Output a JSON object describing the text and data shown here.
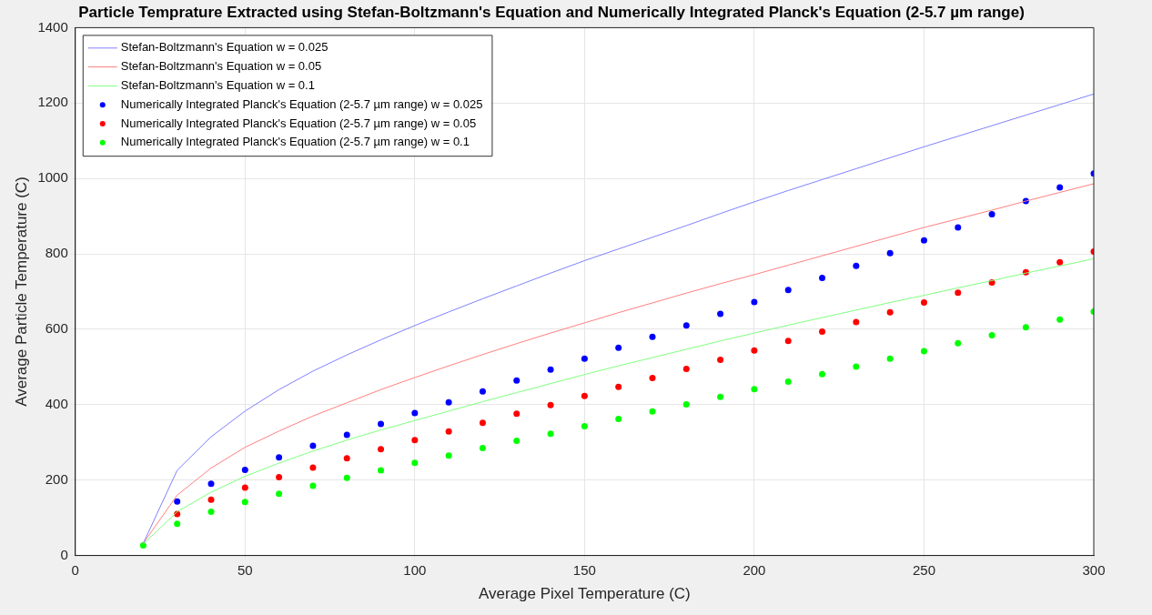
{
  "chart_data": {
    "type": "line",
    "title": "Particle Temprature Extracted using Stefan-Boltzmann's Equation and Numerically Integrated Planck's Equation (2-5.7 µm range)",
    "xlabel": "Average Pixel Temperature (C)",
    "ylabel": "Average Particle Temperature (C)",
    "x": [
      20,
      30,
      40,
      50,
      60,
      70,
      80,
      90,
      100,
      110,
      120,
      130,
      140,
      150,
      160,
      170,
      180,
      190,
      200,
      210,
      220,
      230,
      240,
      250,
      260,
      270,
      280,
      290,
      300
    ],
    "xlim": [
      0,
      300
    ],
    "xticks": [
      0,
      50,
      100,
      150,
      200,
      250,
      300
    ],
    "ylim": [
      0,
      1400
    ],
    "yticks": [
      0,
      200,
      400,
      600,
      800,
      1000,
      1200,
      1400
    ],
    "grid": true,
    "legend": "top left",
    "series": [
      {
        "name": "Stefan-Boltzmann's Equation w = 0.025",
        "marker": "none",
        "color": "#8080ff",
        "values": [
          32,
          226,
          315,
          383,
          440,
          489,
          532,
          572,
          610,
          646,
          681,
          715,
          749,
          782,
          813,
          844,
          875,
          907,
          938,
          968,
          997,
          1026,
          1055,
          1084,
          1112,
          1140,
          1168,
          1196,
          1224
        ]
      },
      {
        "name": "Stefan-Boltzmann's Equation w = 0.05",
        "marker": "none",
        "color": "#ff8080",
        "values": [
          32,
          160,
          232,
          287,
          330,
          370,
          405,
          440,
          472,
          503,
          533,
          562,
          590,
          617,
          644,
          670,
          696,
          721,
          745,
          770,
          795,
          820,
          845,
          870,
          893,
          916,
          940,
          963,
          986
        ]
      },
      {
        "name": "Stefan-Boltzmann's Equation w = 0.1",
        "marker": "none",
        "color": "#80ff80",
        "values": [
          30,
          116,
          168,
          210,
          245,
          277,
          306,
          333,
          358,
          383,
          408,
          432,
          456,
          480,
          503,
          525,
          547,
          569,
          590,
          611,
          631,
          651,
          671,
          690,
          710,
          729,
          749,
          768,
          787
        ]
      },
      {
        "name": "Numerically Integrated Planck's Equation (2-5.7 µm range) w = 0.025",
        "type": "scatter",
        "marker": "circle",
        "color": "#0000ff",
        "values": [
          null,
          143,
          190,
          227,
          260,
          291,
          320,
          349,
          378,
          406,
          435,
          464,
          493,
          522,
          551,
          580,
          610,
          641,
          672,
          704,
          736,
          768,
          802,
          836,
          870,
          905,
          940,
          976,
          1013
        ]
      },
      {
        "name": "Numerically Integrated Planck's Equation (2-5.7 µm range) w = 0.05",
        "type": "scatter",
        "marker": "circle",
        "color": "#ff0000",
        "values": [
          null,
          110,
          148,
          180,
          208,
          233,
          258,
          282,
          306,
          329,
          352,
          376,
          399,
          423,
          447,
          471,
          495,
          519,
          544,
          569,
          594,
          619,
          645,
          671,
          697,
          724,
          751,
          778,
          806
        ]
      },
      {
        "name": "Numerically Integrated Planck's Equation (2-5.7 µm range) w = 0.1",
        "type": "scatter",
        "marker": "circle",
        "color": "#00ff00",
        "values": [
          27,
          84,
          116,
          142,
          164,
          185,
          206,
          226,
          246,
          265,
          285,
          304,
          323,
          343,
          362,
          382,
          401,
          421,
          441,
          461,
          481,
          501,
          522,
          542,
          563,
          584,
          605,
          626,
          647
        ]
      }
    ]
  }
}
